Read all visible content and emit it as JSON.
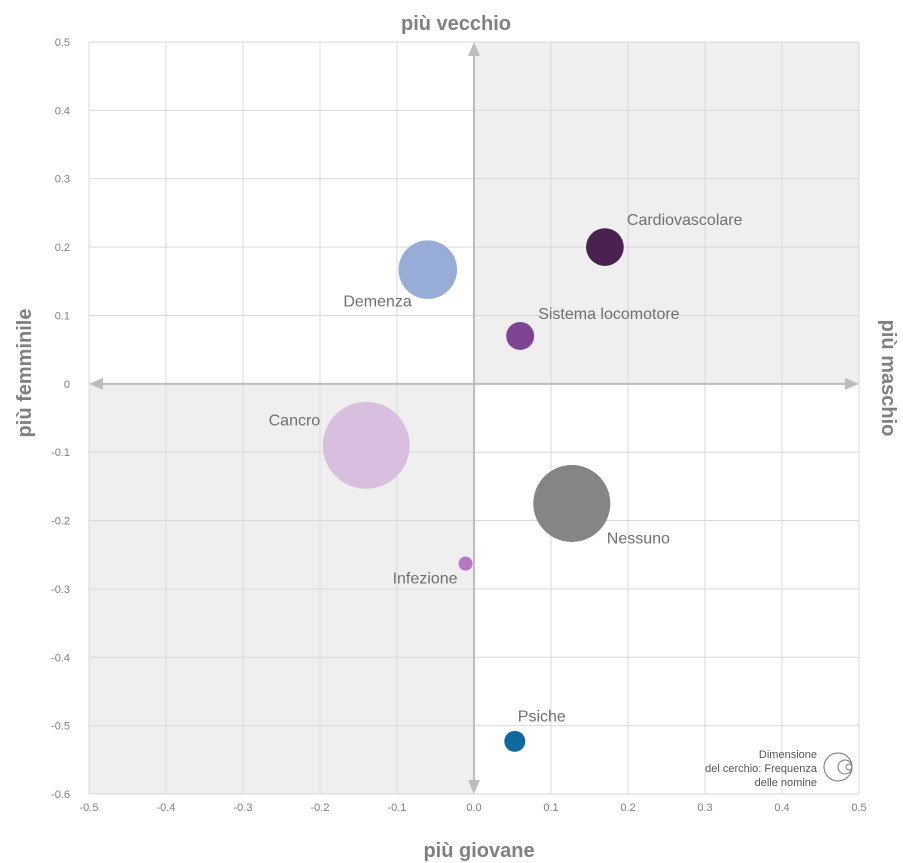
{
  "chart_data": {
    "type": "scatter",
    "subtype": "bubble",
    "axis_titles": {
      "top": "più vecchio",
      "bottom": "più giovane",
      "left": "più  femminile",
      "right": "più  maschio"
    },
    "xlim": [
      -0.5,
      0.5
    ],
    "ylim": [
      -0.6,
      0.5
    ],
    "x_ticks": [
      "-0.5",
      "-0.4",
      "-0.3",
      "-0.2",
      "-0.1",
      "0.0",
      "0.1",
      "0.2",
      "0.3",
      "0.4",
      "0.5"
    ],
    "y_ticks": [
      "0.5",
      "0.4",
      "0.3",
      "0.2",
      "0.1",
      "0",
      "-0.1",
      "-0.2",
      "-0.3",
      "-0.4",
      "-0.5",
      "-0.6"
    ],
    "grid": true,
    "shaded_quadrants": [
      "top-right",
      "bottom-left"
    ],
    "colors": {
      "shade": "#efefef",
      "grid": "#d9d9d9",
      "axis": "#bdbdbd"
    },
    "points": [
      {
        "name": "Cardiovascolare",
        "x": 0.17,
        "y": 0.2,
        "size": 0.29,
        "color": "#4a2250"
      },
      {
        "name": "Demenza",
        "x": -0.06,
        "y": 0.167,
        "size": 0.7,
        "color": "#97add7"
      },
      {
        "name": "Sistema locomotore",
        "x": 0.06,
        "y": 0.07,
        "size": 0.16,
        "color": "#7f4592"
      },
      {
        "name": "Cancro",
        "x": -0.14,
        "y": -0.09,
        "size": 1.54,
        "color": "#d8bfe0"
      },
      {
        "name": "Nessuno",
        "x": 0.127,
        "y": -0.175,
        "size": 1.21,
        "color": "#858585"
      },
      {
        "name": "Infezione",
        "x": -0.011,
        "y": -0.263,
        "size": 0.04,
        "color": "#b678c4"
      },
      {
        "name": "Psiche",
        "x": 0.053,
        "y": -0.523,
        "size": 0.09,
        "color": "#0e69a0"
      }
    ],
    "legend": {
      "lines": [
        "Dimensione",
        "del cerchio: Frequenza",
        "delle nomine"
      ],
      "position": "bottom-right"
    }
  }
}
